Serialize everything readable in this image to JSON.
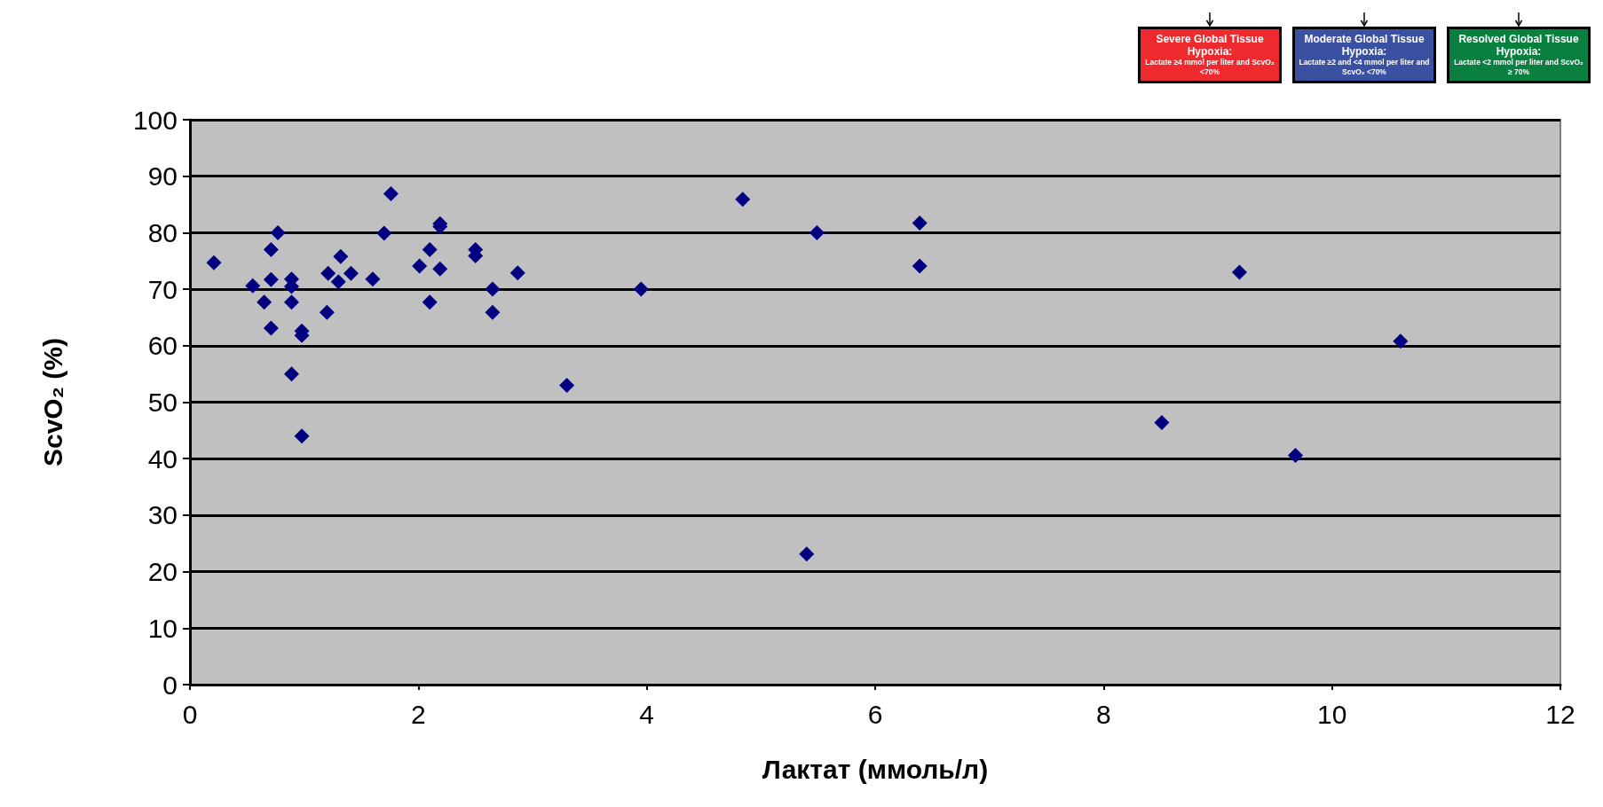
{
  "chart_data": {
    "type": "scatter",
    "xlabel": "Лактат (ммоль/л)",
    "ylabel": "ScvO₂ (%)",
    "xlim": [
      0,
      12
    ],
    "xticks": [
      0,
      2,
      4,
      6,
      8,
      10,
      12
    ],
    "ylim": [
      0,
      100
    ],
    "yticks": [
      0,
      10,
      20,
      30,
      40,
      50,
      60,
      70,
      80,
      90,
      100
    ],
    "grid": "y",
    "marker": "diamond",
    "series": [
      {
        "color": "#000080",
        "x": [
          0.21,
          0.55,
          0.65,
          0.71,
          0.71,
          0.71,
          0.77,
          0.89,
          0.89,
          0.89,
          0.89,
          0.98,
          0.98,
          0.98,
          1.2,
          1.21,
          1.3,
          1.32,
          1.41,
          1.6,
          1.7,
          1.76,
          2.01,
          2.1,
          2.1,
          2.19,
          2.19,
          2.19,
          2.5,
          2.5,
          2.65,
          2.65,
          2.87,
          3.3,
          3.95,
          4.84,
          5.4,
          5.49,
          6.39,
          6.39,
          8.51,
          9.19,
          9.68,
          10.6
        ],
        "values": [
          74.7,
          70.6,
          67.7,
          71.7,
          77,
          63.1,
          80,
          71.8,
          70.5,
          67.7,
          55,
          62.6,
          61.8,
          44,
          65.9,
          72.8,
          71.3,
          75.8,
          72.8,
          71.8,
          79.9,
          86.9,
          74.1,
          77,
          67.7,
          73.6,
          81.6,
          81.1,
          77,
          75.9,
          70,
          65.9,
          72.9,
          53,
          70,
          85.9,
          23.1,
          80,
          81.7,
          74.1,
          46.4,
          73,
          40.6,
          60.8
        ]
      }
    ],
    "annotations": [
      "Severe Global Tissue Hypoxia:\nLactate ≥4 mmol per liter and ScvO₂ <70%",
      "Moderate Global Tissue Hypoxia:\nLactate ≥2 and <4 mmol per liter and ScvO₂ <70%",
      "Resolved Global Tissue Hypoxia:\nLactate <2 mmol per liter and ScvO₂ ≥ 70%"
    ]
  }
}
